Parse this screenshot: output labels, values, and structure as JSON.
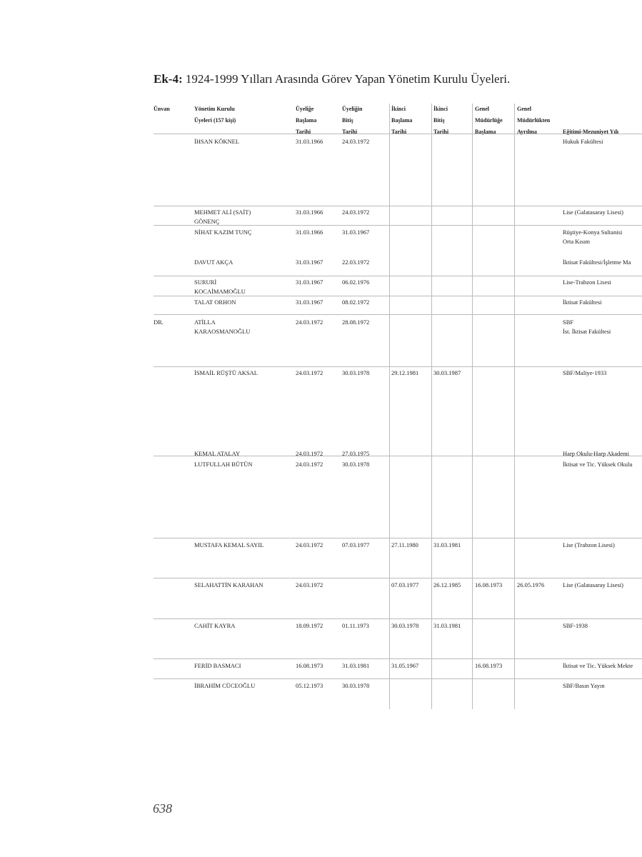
{
  "title_bold": "Ek-4:",
  "title_rest": " 1924-1999 Yılları Arasında Görev Yapan Yönetim Kurulu Üyeleri.",
  "headers": [
    "Ünvan",
    "Yönetim Kurulu\nÜyeleri (157 kişi)",
    "Üyeliğe\nBaşlama\nTarihi",
    "Üyeliğin\nBitiş\nTarihi",
    "İkinci\nBaşlama\nTarihi",
    "İkinci\nBitiş\nTarihi",
    "Genel\nMüdürlüğe\nBaşlama",
    "Genel\nMüdürlükten\nAyrılma",
    "Eğitimi-Mezuniyet Yılı"
  ],
  "rows": [
    [
      "",
      "İHSAN KÖKNEL",
      "31.03.1966",
      "24.03.1972",
      "",
      "",
      "",
      "",
      "Hukuk Fakültesi"
    ],
    [
      "",
      "MEHMET ALİ (SAİT)\nGÖNENÇ",
      "31.03.1966",
      "24.03.1972",
      "",
      "",
      "",
      "",
      "Lise (Galatasaray Lisesi)"
    ],
    [
      "",
      "NİHAT KAZIM TUNÇ",
      "31.03.1966",
      "31.03.1967",
      "",
      "",
      "",
      "",
      "Rüştiye-Konya Sultanisi\nOrta Kısım"
    ],
    [
      "",
      "DAVUT AKÇA",
      "31.03.1967",
      "22.03.1972",
      "",
      "",
      "",
      "",
      "İktisat Fakültesi/İşletme Ma"
    ],
    [
      "",
      "SURURİ\nKOCAİMAMOĞLU",
      "31.03.1967",
      "06.02.1976",
      "",
      "",
      "",
      "",
      "Lise-Trabzon Lisesi"
    ],
    [
      "",
      "TALAT ORHON",
      "31.03.1967",
      "08.02.1972",
      "",
      "",
      "",
      "",
      "İktisat Fakültesi"
    ],
    [
      "DR.",
      "ATİLLA\nKARAOSMANOĞLU",
      "24.03.1972",
      "28.08.1972",
      "",
      "",
      "",
      "",
      "SBF\nİst. İktisat Fakültesi"
    ],
    [
      "",
      "İSMAİL RÜŞTÜ AKSAL",
      "24.03.1972",
      "30.03.1978",
      "29.12.1981",
      "30.03.1987",
      "",
      "",
      "SBF/Maliye-1933"
    ],
    [
      "",
      "KEMAL ATALAY",
      "24.03.1972",
      "27.03.1975",
      "",
      "",
      "",
      "",
      "Harp Okulu-Harp Akademi"
    ],
    [
      "",
      "LUTFULLAH BÜTÜN",
      "24.03.1972",
      "30.03.1978",
      "",
      "",
      "",
      "",
      "İktisat ve Tic. Yüksek Okulu"
    ],
    [
      "",
      "MUSTAFA KEMAL SAYIL",
      "24.03.1972",
      "07.03.1977",
      "27.11.1980",
      "31.03.1981",
      "",
      "",
      "Lise (Trabzon Lisesi)"
    ],
    [
      "",
      "SELAHATTİN KARAHAN",
      "24.03.1972",
      "",
      "07.03.1977",
      "26.12.1985",
      "16.08.1973",
      "26.05.1976",
      "Lise (Galatasaray Lisesi)"
    ],
    [
      "",
      "CAHİT KAYRA",
      "18.09.1972",
      "01.11.1973",
      "30.03.1978",
      "31.03.1981",
      "",
      "",
      "SBF-1938"
    ],
    [
      "",
      "FERİD BASMACI",
      "16.08.1973",
      "31.03.1981",
      "31.05.1967",
      "",
      "16.08.1973",
      "",
      "İktisat ve Tic. Yüksek Mekte"
    ],
    [
      "",
      "İBRAHİM CÜCEOĞLU",
      "05.12.1973",
      "30.03.1978",
      "",
      "",
      "",
      "",
      "SBF/Basın Yayın"
    ]
  ],
  "page_number": "638"
}
